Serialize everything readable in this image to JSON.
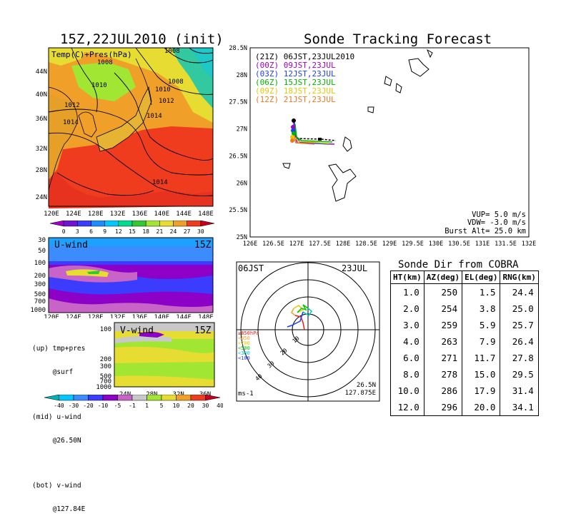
{
  "left_map": {
    "title": "15Z,22JUL2010 (init)",
    "panel_label": "Temp(C)+Pres(hPa)",
    "lat_ticks": [
      "44N",
      "40N",
      "36N",
      "32N",
      "28N",
      "24N"
    ],
    "lon_ticks": [
      "120E",
      "124E",
      "128E",
      "132E",
      "136E",
      "140E",
      "144E",
      "148E"
    ],
    "isobar_labels": [
      "1008",
      "1008",
      "1008",
      "1010",
      "1010",
      "1012",
      "1012",
      "1014",
      "1014",
      "1014"
    ],
    "colorbar_ticks": [
      "0",
      "3",
      "6",
      "9",
      "12",
      "15",
      "18",
      "21",
      "24",
      "27",
      "30"
    ],
    "colorbar_colors": [
      "#a000c8",
      "#6e14d2",
      "#3c3cff",
      "#1e8cff",
      "#00c8ff",
      "#00dc8c",
      "#32c832",
      "#a0e632",
      "#e6dc32",
      "#f0a028",
      "#f03c1e",
      "#c8001e"
    ]
  },
  "uwind": {
    "label": "U-wind",
    "time": "15Z",
    "p_ticks": [
      "30",
      "50",
      "100",
      "200",
      "300",
      "500",
      "700",
      "1000"
    ],
    "lon_ticks": [
      "120E",
      "124E",
      "128E",
      "132E",
      "136E",
      "140E",
      "144E",
      "148E"
    ]
  },
  "vwind": {
    "label": "V-wind",
    "time": "15Z",
    "p_ticks": [
      "100",
      "200",
      "300",
      "500",
      "700",
      "1000"
    ],
    "lat_ticks": [
      "24N",
      "28N",
      "32N",
      "36N"
    ],
    "colorbar_ticks": [
      "-40",
      "-30",
      "-20",
      "-10",
      "-5",
      "-1",
      "1",
      "5",
      "10",
      "20",
      "30",
      "40"
    ],
    "colorbar_colors": [
      "#00b4b4",
      "#00c8ff",
      "#3c8cff",
      "#3c3cff",
      "#8c00c8",
      "#c864c8",
      "#c8c8c8",
      "#a0e632",
      "#e6dc32",
      "#f0a028",
      "#f03c1e",
      "#c8001e"
    ]
  },
  "legend_notes": [
    "(up) tmp+pres",
    "     @surf",
    "(mid) u-wind",
    "     @26.50N",
    "(bot) v-wind",
    "     @127.84E"
  ],
  "tracking": {
    "title": "Sonde Tracking Forecast",
    "lat_ticks": [
      "28.5N",
      "28N",
      "27.5N",
      "27N",
      "26.5N",
      "26N",
      "25.5N",
      "25N"
    ],
    "lon_ticks": [
      "126E",
      "126.5E",
      "127E",
      "127.5E",
      "128E",
      "128.5E",
      "129E",
      "129.5E",
      "130E",
      "130.5E",
      "131E",
      "131.5E",
      "132E"
    ],
    "legend": [
      {
        "text": "(21Z) 06JST,23JUL2010",
        "color": "#000000"
      },
      {
        "text": "(00Z) 09JST,23JUL",
        "color": "#a000c8"
      },
      {
        "text": "(03Z) 12JST,23JUL",
        "color": "#1e3cff"
      },
      {
        "text": "(06Z) 15JST,23JUL",
        "color": "#00b400"
      },
      {
        "text": "(09Z) 18JST,23JUL",
        "color": "#e6c800"
      },
      {
        "text": "(12Z) 21JST,23JUL",
        "color": "#f0781e"
      }
    ],
    "params": [
      "VUP= 5.0 m/s",
      "VDW= -3.0 m/s",
      "Burst Alt= 25.0 km"
    ]
  },
  "polar": {
    "left_label": "06JST",
    "right_label": "23JUL",
    "pressure_legend": [
      {
        "text": "≥850hPa",
        "color": "#e61e1e"
      },
      {
        "text": "<850",
        "color": "#f0a028"
      },
      {
        "text": "<700",
        "color": "#e6c800"
      },
      {
        "text": "<500",
        "color": "#00c800"
      },
      {
        "text": "<300",
        "color": "#00c8c8"
      },
      {
        "text": "<100",
        "color": "#1e3cff"
      }
    ],
    "ring_labels": [
      "10",
      "20",
      "30",
      "40"
    ],
    "units": "ms-1",
    "position_lat": "26.5N",
    "position_lon": "127.875E"
  },
  "chart_data": {
    "type": "table",
    "title": "Sonde Dir from COBRA",
    "columns": [
      "HT(km)",
      "AZ(deg)",
      "EL(deg)",
      "RNG(km)"
    ],
    "rows": [
      [
        "1.0",
        "250",
        "1.5",
        "24.4"
      ],
      [
        "2.0",
        "254",
        "3.8",
        "25.0"
      ],
      [
        "3.0",
        "259",
        "5.9",
        "25.7"
      ],
      [
        "4.0",
        "263",
        "7.9",
        "26.4"
      ],
      [
        "6.0",
        "271",
        "11.7",
        "27.8"
      ],
      [
        "8.0",
        "278",
        "15.0",
        "29.5"
      ],
      [
        "10.0",
        "286",
        "17.9",
        "31.4"
      ],
      [
        "12.0",
        "296",
        "20.0",
        "34.1"
      ]
    ]
  }
}
